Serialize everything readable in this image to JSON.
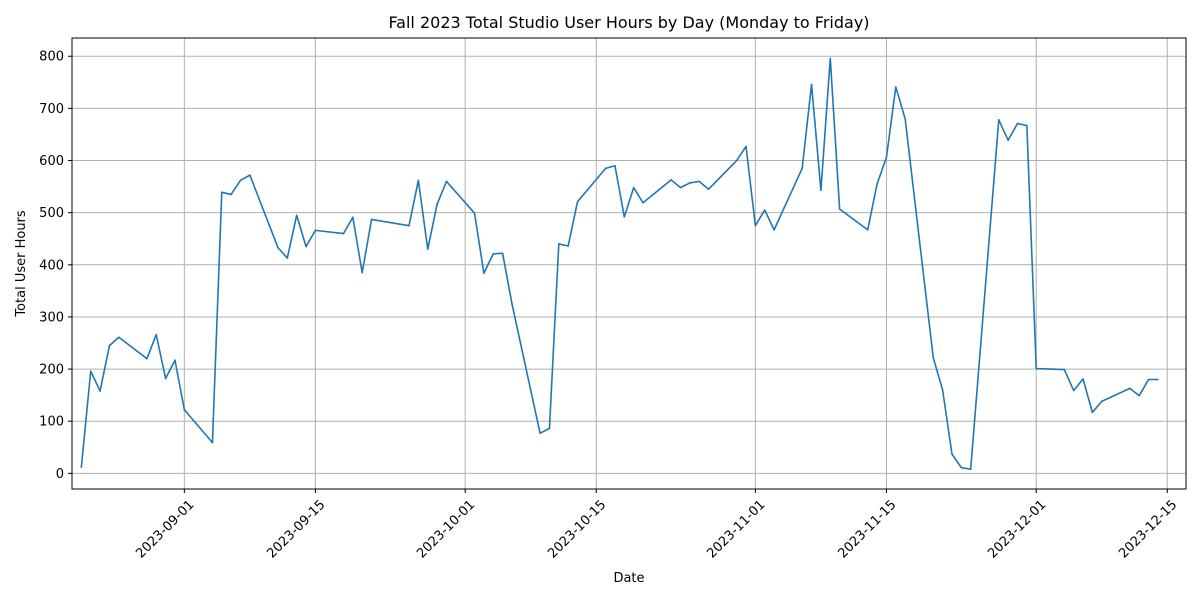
{
  "chart_data": {
    "type": "line",
    "title": "Fall 2023 Total Studio User Hours by Day (Monday to Friday)",
    "xlabel": "Date",
    "ylabel": "Total User Hours",
    "grid": true,
    "line_color": "#1f77b4",
    "xlim": [
      "2023-08-20",
      "2023-12-17"
    ],
    "ylim": [
      -30,
      835
    ],
    "xticks": [
      "2023-09-01",
      "2023-09-15",
      "2023-10-01",
      "2023-10-15",
      "2023-11-01",
      "2023-11-15",
      "2023-12-01",
      "2023-12-15"
    ],
    "yticks": [
      0,
      100,
      200,
      300,
      400,
      500,
      600,
      700,
      800
    ],
    "series": [
      {
        "x": [
          "2023-08-21",
          "2023-08-22",
          "2023-08-23",
          "2023-08-24",
          "2023-08-25",
          "2023-08-28",
          "2023-08-29",
          "2023-08-30",
          "2023-08-31",
          "2023-09-01",
          "2023-09-04",
          "2023-09-05",
          "2023-09-06",
          "2023-09-07",
          "2023-09-08",
          "2023-09-11",
          "2023-09-12",
          "2023-09-13",
          "2023-09-14",
          "2023-09-15",
          "2023-09-18",
          "2023-09-19",
          "2023-09-20",
          "2023-09-21",
          "2023-09-25",
          "2023-09-26",
          "2023-09-27",
          "2023-09-28",
          "2023-09-29",
          "2023-10-02",
          "2023-10-03",
          "2023-10-04",
          "2023-10-05",
          "2023-10-06",
          "2023-10-09",
          "2023-10-10",
          "2023-10-11",
          "2023-10-12",
          "2023-10-13",
          "2023-10-16",
          "2023-10-17",
          "2023-10-18",
          "2023-10-19",
          "2023-10-20",
          "2023-10-23",
          "2023-10-24",
          "2023-10-25",
          "2023-10-26",
          "2023-10-27",
          "2023-10-30",
          "2023-10-31",
          "2023-11-01",
          "2023-11-02",
          "2023-11-03",
          "2023-11-06",
          "2023-11-07",
          "2023-11-08",
          "2023-11-09",
          "2023-11-10",
          "2023-11-13",
          "2023-11-14",
          "2023-11-15",
          "2023-11-16",
          "2023-11-17",
          "2023-11-20",
          "2023-11-21",
          "2023-11-22",
          "2023-11-23",
          "2023-11-24",
          "2023-11-27",
          "2023-11-28",
          "2023-11-29",
          "2023-11-30",
          "2023-12-01",
          "2023-12-04",
          "2023-12-05",
          "2023-12-06",
          "2023-12-07",
          "2023-12-08",
          "2023-12-11",
          "2023-12-12",
          "2023-12-13",
          "2023-12-14"
        ],
        "y": [
          12,
          196,
          158,
          245,
          261,
          220,
          266,
          182,
          217,
          122,
          59,
          539,
          535,
          562,
          572,
          433,
          413,
          495,
          435,
          466,
          460,
          491,
          385,
          487,
          475,
          562,
          430,
          516,
          560,
          499,
          384,
          421,
          422,
          325,
          77,
          86,
          440,
          436,
          521,
          585,
          590,
          492,
          548,
          519,
          563,
          548,
          557,
          560,
          545,
          600,
          627,
          475,
          505,
          467,
          585,
          746,
          543,
          796,
          507,
          467,
          555,
          606,
          741,
          680,
          222,
          160,
          37,
          11,
          8,
          678,
          639,
          671,
          667,
          201,
          199,
          159,
          181,
          117,
          138,
          163,
          149,
          180,
          180
        ]
      }
    ]
  }
}
